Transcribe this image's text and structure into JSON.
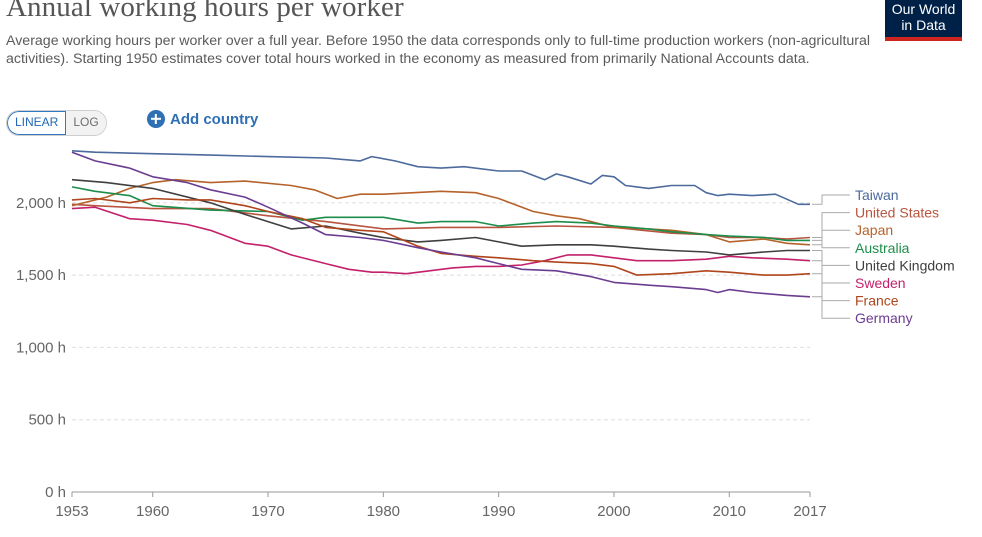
{
  "header": {
    "title": "Annual working hours per worker",
    "subtitle": "Average working hours per worker over a full year. Before 1950 the data corresponds only to full-time production workers (non-agricultural activities). Starting 1950 estimates cover total hours worked in the economy as measured from primarily National Accounts data."
  },
  "logo": {
    "line1": "Our World",
    "line2": "in Data"
  },
  "controls": {
    "linear_label": "LINEAR",
    "log_label": "LOG",
    "add_country_label": "Add country"
  },
  "colors": {
    "brand_navy": "#002147",
    "brand_red": "#ce261e",
    "accent_blue": "#2f6fb3"
  },
  "chart_data": {
    "type": "line",
    "x_ticks": [
      "1953",
      "1960",
      "1970",
      "1980",
      "1990",
      "2000",
      "2010",
      "2017"
    ],
    "y_ticks": [
      "0 h",
      "500 h",
      "1,000 h",
      "1,500 h",
      "2,000 h"
    ],
    "xlim": [
      1953,
      2017
    ],
    "ylim": [
      0,
      2400
    ],
    "y_grid": true,
    "legend_placement": "right",
    "series": [
      {
        "name": "Taiwan",
        "color": "#4c6a9c",
        "x": [
          1953,
          1955,
          1960,
          1965,
          1970,
          1975,
          1978,
          1979,
          1981,
          1983,
          1985,
          1987,
          1990,
          1992,
          1994,
          1995,
          1996,
          1998,
          1999,
          2000,
          2001,
          2003,
          2005,
          2007,
          2008,
          2009,
          2010,
          2012,
          2014,
          2016,
          2017
        ],
        "y": [
          2360,
          2350,
          2340,
          2330,
          2320,
          2310,
          2290,
          2320,
          2290,
          2250,
          2240,
          2250,
          2220,
          2220,
          2160,
          2200,
          2180,
          2130,
          2190,
          2180,
          2120,
          2100,
          2120,
          2120,
          2070,
          2050,
          2060,
          2050,
          2060,
          1990,
          1990
        ]
      },
      {
        "name": "United States",
        "color": "#b8543f",
        "x": [
          1953,
          1955,
          1960,
          1965,
          1970,
          1975,
          1980,
          1985,
          1990,
          1995,
          2000,
          2005,
          2008,
          2010,
          2013,
          2015,
          2017
        ],
        "y": [
          1990,
          1980,
          1960,
          1960,
          1910,
          1870,
          1820,
          1830,
          1830,
          1840,
          1830,
          1790,
          1780,
          1760,
          1760,
          1750,
          1760
        ]
      },
      {
        "name": "Japan",
        "color": "#b6622b",
        "x": [
          1953,
          1956,
          1958,
          1960,
          1962,
          1965,
          1968,
          1972,
          1974,
          1976,
          1978,
          1980,
          1985,
          1988,
          1990,
          1993,
          1995,
          1997,
          2000,
          2003,
          2005,
          2008,
          2010,
          2013,
          2015,
          2017
        ],
        "y": [
          1980,
          2040,
          2100,
          2140,
          2160,
          2140,
          2150,
          2120,
          2090,
          2030,
          2060,
          2060,
          2080,
          2070,
          2030,
          1940,
          1910,
          1890,
          1830,
          1820,
          1810,
          1780,
          1730,
          1750,
          1720,
          1710
        ]
      },
      {
        "name": "Australia",
        "color": "#1c8d4a",
        "x": [
          1953,
          1955,
          1958,
          1960,
          1965,
          1970,
          1973,
          1975,
          1978,
          1980,
          1983,
          1985,
          1988,
          1990,
          1993,
          1995,
          1998,
          2000,
          2003,
          2005,
          2008,
          2010,
          2013,
          2015,
          2017
        ],
        "y": [
          2110,
          2080,
          2050,
          1980,
          1950,
          1940,
          1880,
          1900,
          1900,
          1900,
          1860,
          1870,
          1870,
          1840,
          1860,
          1870,
          1860,
          1840,
          1820,
          1800,
          1780,
          1770,
          1760,
          1740,
          1740
        ]
      },
      {
        "name": "United Kingdom",
        "color": "#3f3f3f",
        "x": [
          1953,
          1956,
          1960,
          1965,
          1968,
          1970,
          1972,
          1975,
          1978,
          1980,
          1983,
          1985,
          1988,
          1990,
          1992,
          1995,
          1998,
          2000,
          2003,
          2005,
          2008,
          2010,
          2013,
          2015,
          2017
        ],
        "y": [
          2160,
          2140,
          2100,
          2000,
          1920,
          1870,
          1820,
          1840,
          1790,
          1760,
          1730,
          1740,
          1760,
          1730,
          1700,
          1710,
          1710,
          1700,
          1680,
          1670,
          1660,
          1640,
          1660,
          1670,
          1670
        ]
      },
      {
        "name": "Sweden",
        "color": "#c3216b",
        "x": [
          1953,
          1955,
          1958,
          1960,
          1963,
          1965,
          1968,
          1970,
          1972,
          1975,
          1977,
          1979,
          1980,
          1982,
          1984,
          1986,
          1988,
          1990,
          1992,
          1994,
          1996,
          1998,
          2000,
          2002,
          2005,
          2008,
          2010,
          2012,
          2015,
          2017
        ],
        "y": [
          1960,
          1970,
          1890,
          1880,
          1850,
          1810,
          1720,
          1700,
          1640,
          1580,
          1540,
          1520,
          1520,
          1510,
          1530,
          1550,
          1560,
          1560,
          1570,
          1600,
          1640,
          1640,
          1620,
          1600,
          1600,
          1610,
          1630,
          1620,
          1610,
          1600
        ]
      },
      {
        "name": "France",
        "color": "#b0451c",
        "x": [
          1953,
          1955,
          1958,
          1960,
          1963,
          1965,
          1968,
          1970,
          1973,
          1975,
          1978,
          1980,
          1983,
          1985,
          1988,
          1990,
          1993,
          1995,
          1998,
          2000,
          2002,
          2005,
          2008,
          2010,
          2013,
          2015,
          2017
        ],
        "y": [
          2020,
          2030,
          2000,
          2030,
          2020,
          2020,
          1980,
          1940,
          1890,
          1830,
          1810,
          1800,
          1700,
          1650,
          1630,
          1620,
          1600,
          1590,
          1580,
          1560,
          1500,
          1510,
          1530,
          1520,
          1500,
          1500,
          1510
        ]
      },
      {
        "name": "Germany",
        "color": "#6b3d91",
        "x": [
          1953,
          1955,
          1958,
          1960,
          1963,
          1965,
          1968,
          1970,
          1973,
          1975,
          1978,
          1980,
          1983,
          1985,
          1988,
          1990,
          1992,
          1995,
          1998,
          2000,
          2003,
          2005,
          2008,
          2009,
          2010,
          2012,
          2015,
          2017
        ],
        "y": [
          2350,
          2290,
          2240,
          2180,
          2140,
          2090,
          2040,
          1970,
          1860,
          1780,
          1760,
          1740,
          1690,
          1660,
          1620,
          1580,
          1540,
          1530,
          1490,
          1450,
          1430,
          1420,
          1400,
          1380,
          1400,
          1380,
          1360,
          1350
        ]
      }
    ]
  }
}
